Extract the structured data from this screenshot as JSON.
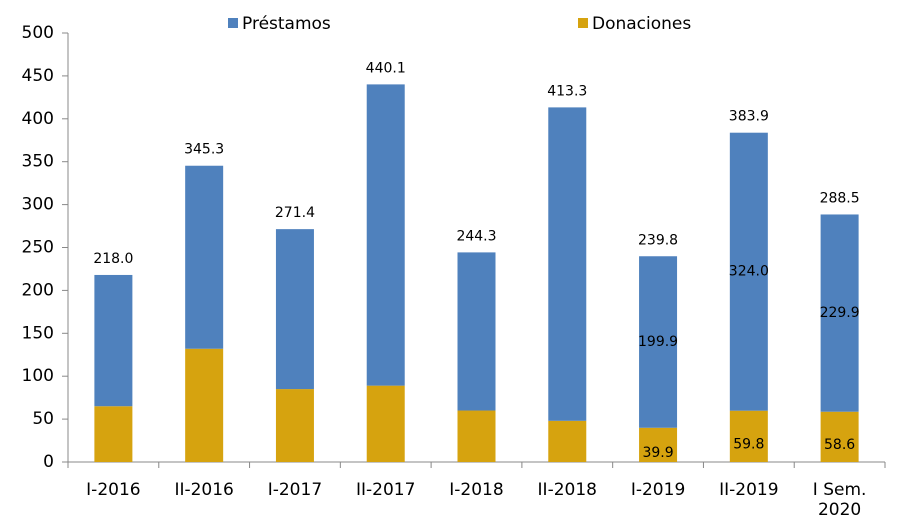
{
  "chart_data": {
    "type": "stacked_bar",
    "categories": [
      "I-2016",
      "II-2016",
      "I-2017",
      "II-2017",
      "I-2018",
      "II-2018",
      "I-2019",
      "II-2019",
      "I Sem. 2020"
    ],
    "series": [
      {
        "name": "Donaciones",
        "color": "#d6a30f",
        "values": [
          65,
          132,
          85,
          89,
          60,
          48,
          39.9,
          59.8,
          58.6
        ],
        "value_labels": [
          null,
          null,
          null,
          null,
          null,
          null,
          "39.9",
          "59.8",
          "58.6"
        ]
      },
      {
        "name": "Préstamos",
        "color": "#4f81bd",
        "values": [
          153,
          213.3,
          186.4,
          351.1,
          184.3,
          365.3,
          199.9,
          324,
          229.9
        ],
        "value_labels": [
          null,
          null,
          null,
          null,
          null,
          null,
          "199.9",
          "324.0",
          "229.9"
        ]
      }
    ],
    "total_labels": [
      "218.0",
      "345.3",
      "271.4",
      "440.1",
      "244.3",
      "413.3",
      "239.8",
      "383.9",
      "288.5"
    ],
    "ylim": [
      0,
      500
    ],
    "yticks": [
      0,
      50,
      100,
      150,
      200,
      250,
      300,
      350,
      400,
      450,
      500
    ],
    "legend": "top"
  }
}
